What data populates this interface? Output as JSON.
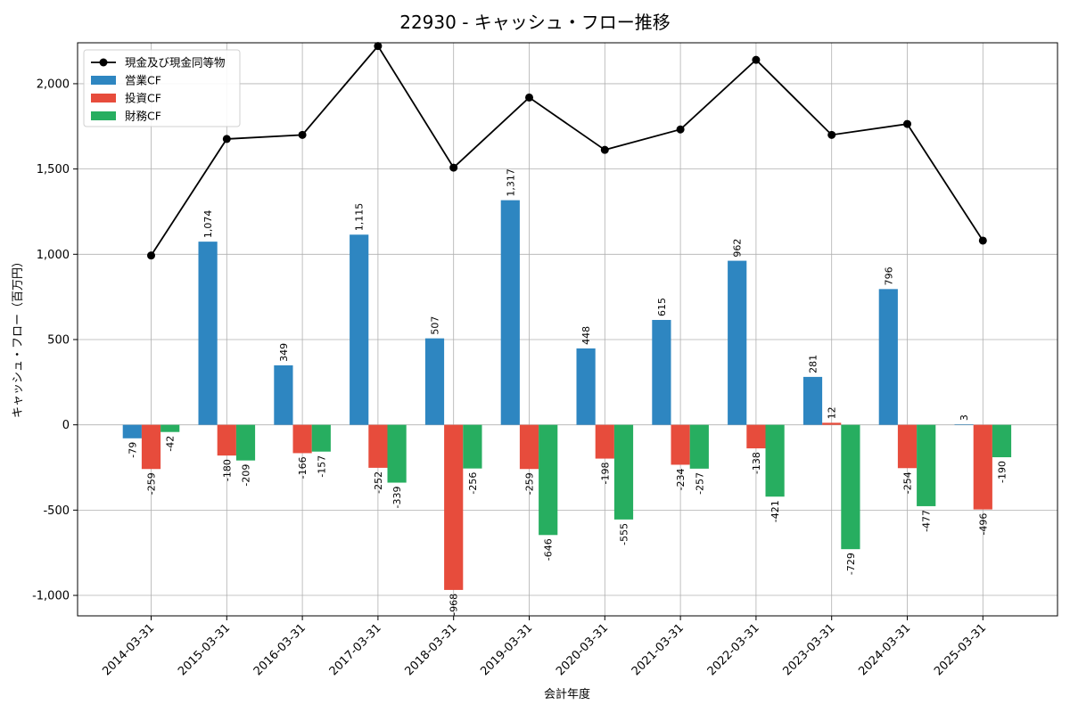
{
  "chart_data": {
    "type": "bar",
    "title": "22930 - キャッシュ・フロー推移",
    "xlabel": "会計年度",
    "ylabel": "キャッシュ・フロー（百万円）",
    "ylim": [
      -1120,
      2240
    ],
    "yticks": [
      -1000,
      -500,
      0,
      500,
      1000,
      1500,
      2000
    ],
    "ytick_labels": [
      "-1,000",
      "-500",
      "0",
      "500",
      "1,000",
      "1,500",
      "2,000"
    ],
    "grid": true,
    "legend_position": "top-left",
    "categories": [
      "2014-03-31",
      "2015-03-31",
      "2016-03-31",
      "2017-03-31",
      "2018-03-31",
      "2019-03-31",
      "2020-03-31",
      "2021-03-31",
      "2022-03-31",
      "2023-03-31",
      "2024-03-31",
      "2025-03-31"
    ],
    "series": [
      {
        "name": "営業CF",
        "kind": "bar",
        "color": "#2e86c1",
        "values": [
          -79,
          1074,
          349,
          1115,
          507,
          1317,
          448,
          615,
          962,
          281,
          796,
          3
        ],
        "labels": [
          "-79",
          "1,074",
          "349",
          "1,115",
          "507",
          "1,317",
          "448",
          "615",
          "962",
          "281",
          "796",
          "3"
        ]
      },
      {
        "name": "投資CF",
        "kind": "bar",
        "color": "#e74c3c",
        "values": [
          -259,
          -180,
          -166,
          -252,
          -968,
          -259,
          -198,
          -234,
          -138,
          12,
          -254,
          -496
        ],
        "labels": [
          "-259",
          "-180",
          "-166",
          "-252",
          "-968",
          "-259",
          "-198",
          "-234",
          "-138",
          "12",
          "-254",
          "-496"
        ]
      },
      {
        "name": "財務CF",
        "kind": "bar",
        "color": "#27ae60",
        "values": [
          -42,
          -209,
          -157,
          -339,
          -256,
          -646,
          -555,
          -257,
          -421,
          -729,
          -477,
          -190
        ],
        "labels": [
          "-42",
          "-209",
          "-157",
          "-339",
          "-256",
          "-646",
          "-555",
          "-257",
          "-421",
          "-729",
          "-477",
          "-190"
        ]
      },
      {
        "name": "現金及び現金同等物",
        "kind": "line",
        "color": "#000000",
        "values": [
          993,
          1676,
          1700,
          2221,
          1508,
          1919,
          1612,
          1732,
          2140,
          1700,
          1764,
          1080
        ]
      }
    ]
  }
}
